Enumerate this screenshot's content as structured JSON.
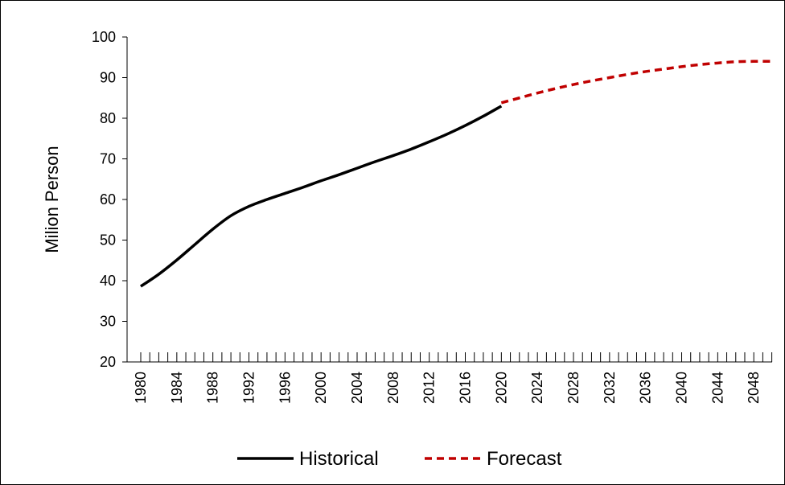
{
  "chart_data": {
    "type": "line",
    "ylabel": "Milion Person",
    "xlabel": "",
    "ylim": [
      20,
      100
    ],
    "yticks": [
      20,
      30,
      40,
      50,
      60,
      70,
      80,
      90,
      100
    ],
    "xlim": [
      1980,
      2050
    ],
    "xticks": [
      "1980",
      "1984",
      "1988",
      "1992",
      "1996",
      "2000",
      "2004",
      "2008",
      "2012",
      "2016",
      "2020",
      "2024",
      "2028",
      "2032",
      "2036",
      "2040",
      "2044",
      "2048"
    ],
    "grid": false,
    "legend_position": "bottom",
    "series": [
      {
        "name": "Historical",
        "color": "#000000",
        "style": "solid",
        "x": [
          1980,
          1982,
          1984,
          1986,
          1988,
          1990,
          1992,
          1994,
          1996,
          1998,
          2000,
          2002,
          2004,
          2006,
          2008,
          2010,
          2012,
          2014,
          2016,
          2018,
          2020
        ],
        "y": [
          38.6,
          41.6,
          45.1,
          48.9,
          52.7,
          56.0,
          58.3,
          60.0,
          61.5,
          63.0,
          64.6,
          66.1,
          67.7,
          69.3,
          70.8,
          72.4,
          74.2,
          76.1,
          78.2,
          80.5,
          83.0
        ]
      },
      {
        "name": "Forecast",
        "color": "#c00000",
        "style": "dashed",
        "x": [
          2020,
          2022,
          2024,
          2026,
          2028,
          2030,
          2032,
          2034,
          2036,
          2038,
          2040,
          2042,
          2044,
          2046,
          2048,
          2050
        ],
        "y": [
          83.8,
          85.0,
          86.2,
          87.3,
          88.3,
          89.2,
          90.0,
          90.8,
          91.5,
          92.1,
          92.7,
          93.2,
          93.6,
          93.9,
          94.0,
          94.0
        ]
      }
    ]
  }
}
